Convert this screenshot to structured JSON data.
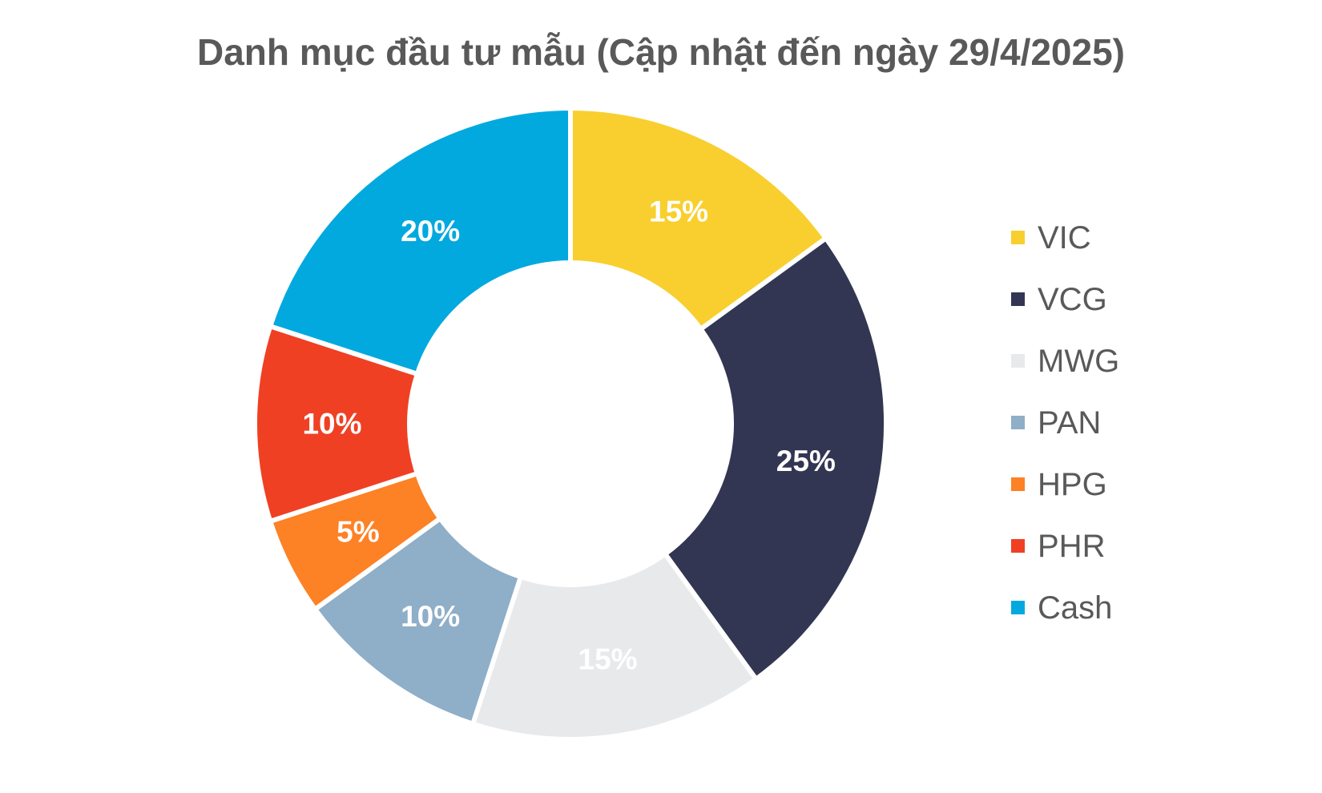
{
  "chart_data": {
    "type": "pie",
    "title": "Danh mục đầu tư mẫu (Cập nhật đến ngày 29/4/2025)",
    "donut": true,
    "legend_position": "right",
    "slices": [
      {
        "label": "VIC",
        "value": 15,
        "display": "15%",
        "color": "#F8CF2E"
      },
      {
        "label": "VCG",
        "value": 25,
        "display": "25%",
        "color": "#333652"
      },
      {
        "label": "MWG",
        "value": 15,
        "display": "15%",
        "color": "#E8E9EB"
      },
      {
        "label": "PAN",
        "value": 10,
        "display": "10%",
        "color": "#8FAEC8"
      },
      {
        "label": "HPG",
        "value": 5,
        "display": "5%",
        "color": "#FD8125"
      },
      {
        "label": "PHR",
        "value": 10,
        "display": "10%",
        "color": "#EF4024"
      },
      {
        "label": "Cash",
        "value": 20,
        "display": "20%",
        "color": "#01A9DF"
      }
    ]
  }
}
